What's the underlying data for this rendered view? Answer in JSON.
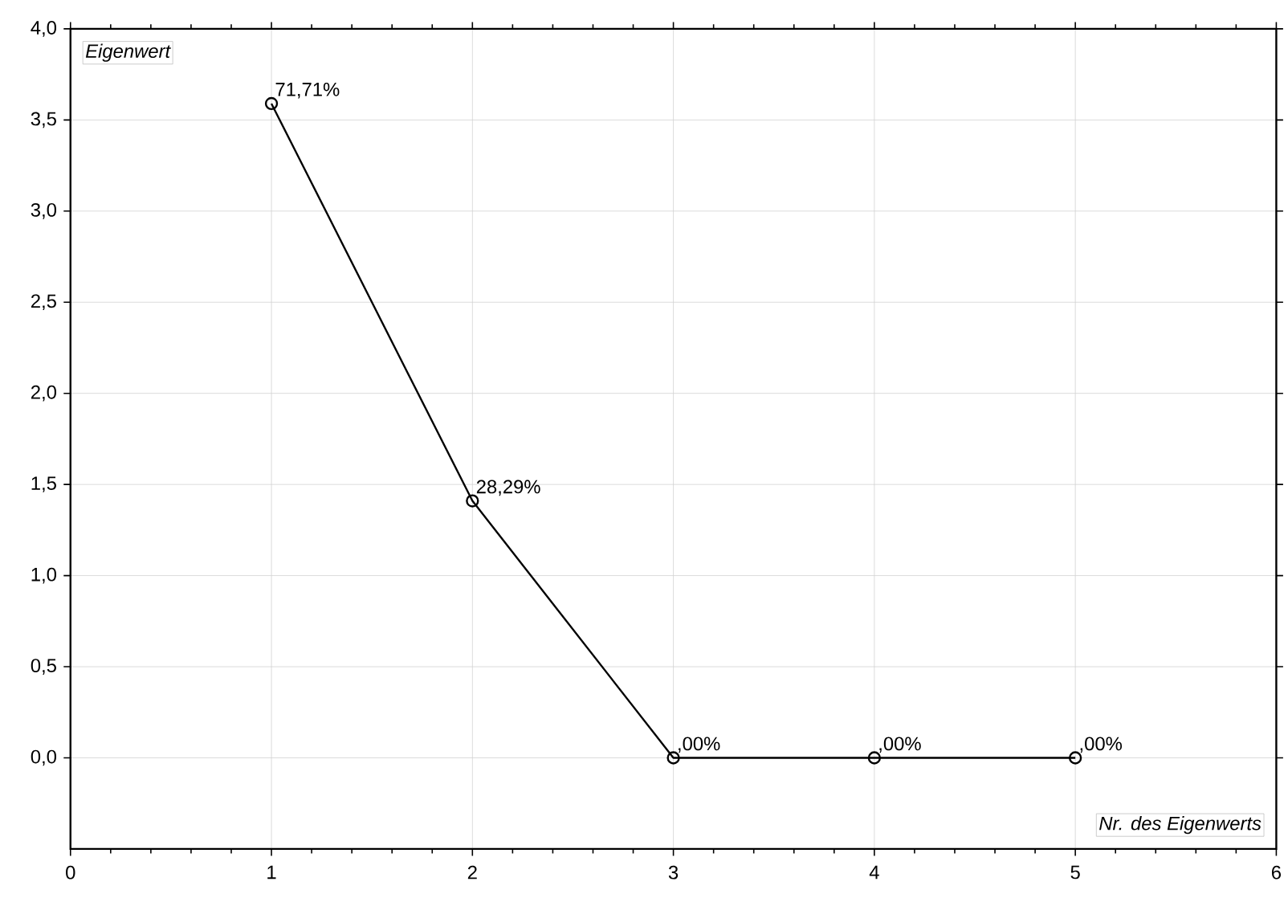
{
  "chart_data": {
    "type": "line",
    "xlabel": "Nr. des Eigenwerts",
    "ylabel": "Eigenwert",
    "x": [
      1,
      2,
      3,
      4,
      5
    ],
    "series": [
      {
        "color": "#000000",
        "values": [
          3.59,
          1.41,
          0,
          0,
          0
        ]
      }
    ],
    "annotations": [
      {
        "text": "71,71%",
        "x": 1,
        "y": 3.59
      },
      {
        "text": "28,29%",
        "x": 2,
        "y": 1.41
      },
      {
        "text": ",00%",
        "x": 3,
        "y": 0
      },
      {
        "text": ",00%",
        "x": 4,
        "y": 0
      },
      {
        "text": ",00%",
        "x": 5,
        "y": 0
      }
    ],
    "xlim": [
      0,
      6
    ],
    "xticks": [
      0,
      1,
      2,
      3,
      4,
      5,
      6
    ],
    "ylim": [
      -0.5,
      4.0
    ],
    "yticks": [
      {
        "value": 0,
        "label": "0,0"
      },
      {
        "value": 0.5,
        "label": "0,5"
      },
      {
        "value": 1.0,
        "label": "1,0"
      },
      {
        "value": 1.5,
        "label": "1,5"
      },
      {
        "value": 2.0,
        "label": "2,0"
      },
      {
        "value": 2.5,
        "label": "2,5"
      },
      {
        "value": 3.0,
        "label": "3,0"
      },
      {
        "value": 3.5,
        "label": "3,5"
      },
      {
        "value": 4.0,
        "label": "4,0"
      }
    ],
    "grid": true,
    "marker": "circle",
    "line_style": "solid"
  }
}
